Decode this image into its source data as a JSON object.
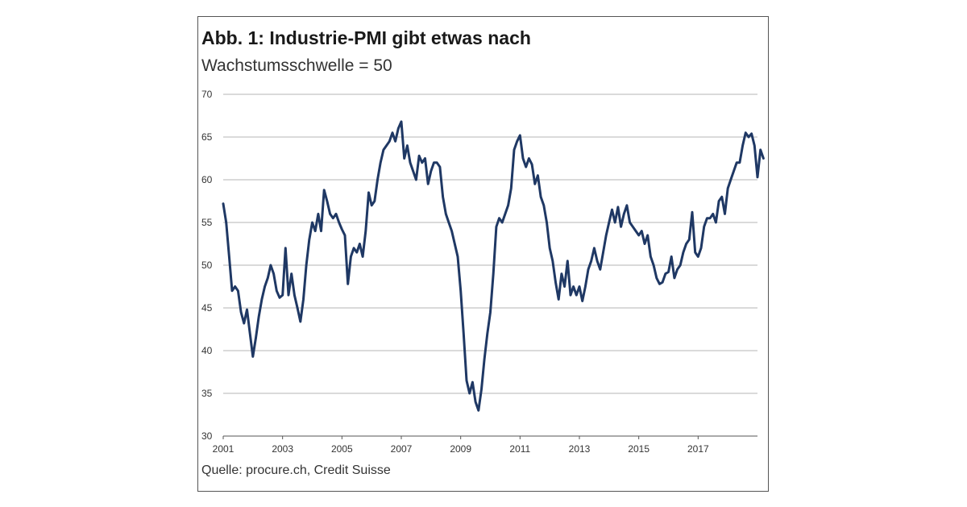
{
  "figure": {
    "title": "Abb. 1: Industrie-PMI gibt etwas nach",
    "subtitle": "Wachstumsschwelle = 50",
    "source": "Quelle: procure.ch, Credit Suisse"
  },
  "chart_data": {
    "type": "line",
    "title": "Abb. 1: Industrie-PMI gibt etwas nach",
    "subtitle": "Wachstumsschwelle = 50",
    "xlabel": "",
    "ylabel": "",
    "ylim": [
      30,
      70
    ],
    "xlim": [
      2001,
      2019
    ],
    "yticks": [
      30,
      35,
      40,
      45,
      50,
      55,
      60,
      65,
      70
    ],
    "xticks": [
      "2001",
      "2003",
      "2005",
      "2007",
      "2009",
      "2011",
      "2013",
      "2015",
      "2017"
    ],
    "grid": "horizontal",
    "legend": "none",
    "color": "#1f3864",
    "series": [
      {
        "points": [
          [
            2001.0,
            57.2
          ],
          [
            2001.1,
            55.0
          ],
          [
            2001.2,
            51.0
          ],
          [
            2001.3,
            47.0
          ],
          [
            2001.4,
            47.5
          ],
          [
            2001.5,
            47.0
          ],
          [
            2001.6,
            44.5
          ],
          [
            2001.7,
            43.2
          ],
          [
            2001.8,
            44.8
          ],
          [
            2001.9,
            42.0
          ],
          [
            2002.0,
            39.3
          ],
          [
            2002.1,
            41.5
          ],
          [
            2002.2,
            44.0
          ],
          [
            2002.3,
            46.0
          ],
          [
            2002.4,
            47.5
          ],
          [
            2002.5,
            48.5
          ],
          [
            2002.6,
            50.0
          ],
          [
            2002.7,
            49.0
          ],
          [
            2002.8,
            47.0
          ],
          [
            2002.9,
            46.2
          ],
          [
            2003.0,
            46.5
          ],
          [
            2003.1,
            52.0
          ],
          [
            2003.2,
            46.5
          ],
          [
            2003.3,
            49.0
          ],
          [
            2003.4,
            46.5
          ],
          [
            2003.5,
            45.0
          ],
          [
            2003.6,
            43.4
          ],
          [
            2003.7,
            46.0
          ],
          [
            2003.8,
            50.0
          ],
          [
            2003.9,
            53.0
          ],
          [
            2004.0,
            55.0
          ],
          [
            2004.1,
            54.0
          ],
          [
            2004.2,
            56.0
          ],
          [
            2004.3,
            54.0
          ],
          [
            2004.4,
            58.8
          ],
          [
            2004.5,
            57.5
          ],
          [
            2004.6,
            56.0
          ],
          [
            2004.7,
            55.5
          ],
          [
            2004.8,
            56.0
          ],
          [
            2004.9,
            55.0
          ],
          [
            2005.0,
            54.2
          ],
          [
            2005.1,
            53.5
          ],
          [
            2005.2,
            47.8
          ],
          [
            2005.3,
            51.0
          ],
          [
            2005.4,
            52.0
          ],
          [
            2005.5,
            51.5
          ],
          [
            2005.6,
            52.5
          ],
          [
            2005.7,
            51.0
          ],
          [
            2005.8,
            54.0
          ],
          [
            2005.9,
            58.5
          ],
          [
            2006.0,
            57.0
          ],
          [
            2006.1,
            57.5
          ],
          [
            2006.2,
            60.0
          ],
          [
            2006.3,
            62.0
          ],
          [
            2006.4,
            63.5
          ],
          [
            2006.5,
            64.0
          ],
          [
            2006.6,
            64.5
          ],
          [
            2006.7,
            65.5
          ],
          [
            2006.8,
            64.5
          ],
          [
            2006.9,
            66.0
          ],
          [
            2007.0,
            66.8
          ],
          [
            2007.1,
            62.5
          ],
          [
            2007.2,
            64.0
          ],
          [
            2007.3,
            62.0
          ],
          [
            2007.4,
            61.0
          ],
          [
            2007.5,
            60.0
          ],
          [
            2007.6,
            62.8
          ],
          [
            2007.7,
            62.0
          ],
          [
            2007.8,
            62.5
          ],
          [
            2007.9,
            59.5
          ],
          [
            2008.0,
            61.0
          ],
          [
            2008.1,
            62.0
          ],
          [
            2008.2,
            62.0
          ],
          [
            2008.3,
            61.5
          ],
          [
            2008.4,
            58.0
          ],
          [
            2008.5,
            56.0
          ],
          [
            2008.6,
            55.0
          ],
          [
            2008.7,
            54.0
          ],
          [
            2008.8,
            52.5
          ],
          [
            2008.9,
            51.0
          ],
          [
            2009.0,
            47.0
          ],
          [
            2009.1,
            42.0
          ],
          [
            2009.2,
            36.5
          ],
          [
            2009.3,
            35.0
          ],
          [
            2009.4,
            36.3
          ],
          [
            2009.5,
            34.0
          ],
          [
            2009.6,
            33.0
          ],
          [
            2009.7,
            35.5
          ],
          [
            2009.8,
            39.0
          ],
          [
            2009.9,
            42.0
          ],
          [
            2010.0,
            44.5
          ],
          [
            2010.1,
            49.0
          ],
          [
            2010.2,
            54.5
          ],
          [
            2010.3,
            55.5
          ],
          [
            2010.4,
            55.0
          ],
          [
            2010.5,
            56.0
          ],
          [
            2010.6,
            57.0
          ],
          [
            2010.7,
            59.0
          ],
          [
            2010.8,
            63.5
          ],
          [
            2010.9,
            64.5
          ],
          [
            2011.0,
            65.2
          ],
          [
            2011.1,
            62.5
          ],
          [
            2011.2,
            61.5
          ],
          [
            2011.3,
            62.5
          ],
          [
            2011.4,
            61.8
          ],
          [
            2011.5,
            59.5
          ],
          [
            2011.6,
            60.5
          ],
          [
            2011.7,
            58.0
          ],
          [
            2011.8,
            57.0
          ],
          [
            2011.9,
            55.0
          ],
          [
            2012.0,
            52.0
          ],
          [
            2012.1,
            50.5
          ],
          [
            2012.2,
            48.0
          ],
          [
            2012.3,
            46.0
          ],
          [
            2012.4,
            49.0
          ],
          [
            2012.5,
            47.5
          ],
          [
            2012.6,
            50.5
          ],
          [
            2012.7,
            46.5
          ],
          [
            2012.8,
            47.5
          ],
          [
            2012.9,
            46.5
          ],
          [
            2013.0,
            47.5
          ],
          [
            2013.1,
            45.8
          ],
          [
            2013.2,
            47.5
          ],
          [
            2013.3,
            49.5
          ],
          [
            2013.4,
            50.5
          ],
          [
            2013.5,
            52.0
          ],
          [
            2013.6,
            50.5
          ],
          [
            2013.7,
            49.5
          ],
          [
            2013.8,
            51.5
          ],
          [
            2013.9,
            53.5
          ],
          [
            2014.0,
            55.0
          ],
          [
            2014.1,
            56.5
          ],
          [
            2014.2,
            55.0
          ],
          [
            2014.3,
            56.8
          ],
          [
            2014.4,
            54.5
          ],
          [
            2014.5,
            56.0
          ],
          [
            2014.6,
            57.0
          ],
          [
            2014.7,
            55.0
          ],
          [
            2014.8,
            54.5
          ],
          [
            2014.9,
            54.0
          ],
          [
            2015.0,
            53.5
          ],
          [
            2015.1,
            54.0
          ],
          [
            2015.2,
            52.5
          ],
          [
            2015.3,
            53.5
          ],
          [
            2015.4,
            51.0
          ],
          [
            2015.5,
            50.0
          ],
          [
            2015.6,
            48.5
          ],
          [
            2015.7,
            47.8
          ],
          [
            2015.8,
            48.0
          ],
          [
            2015.9,
            49.0
          ],
          [
            2016.0,
            49.2
          ],
          [
            2016.1,
            51.0
          ],
          [
            2016.2,
            48.5
          ],
          [
            2016.3,
            49.5
          ],
          [
            2016.4,
            50.0
          ],
          [
            2016.5,
            51.5
          ],
          [
            2016.6,
            52.5
          ],
          [
            2016.7,
            53.0
          ],
          [
            2016.8,
            56.2
          ],
          [
            2016.9,
            51.5
          ],
          [
            2017.0,
            51.0
          ],
          [
            2017.1,
            52.0
          ],
          [
            2017.2,
            54.5
          ],
          [
            2017.3,
            55.5
          ],
          [
            2017.4,
            55.5
          ],
          [
            2017.5,
            56.0
          ],
          [
            2017.6,
            55.0
          ],
          [
            2017.7,
            57.5
          ],
          [
            2017.8,
            58.0
          ],
          [
            2017.9,
            56.0
          ],
          [
            2018.0,
            59.0
          ],
          [
            2018.1,
            60.0
          ],
          [
            2018.2,
            61.0
          ],
          [
            2018.3,
            62.0
          ],
          [
            2018.4,
            62.0
          ],
          [
            2018.5,
            64.0
          ],
          [
            2018.6,
            65.5
          ],
          [
            2018.7,
            65.0
          ],
          [
            2018.8,
            65.4
          ],
          [
            2018.9,
            64.0
          ],
          [
            2019.0,
            60.3
          ],
          [
            2019.1,
            63.5
          ],
          [
            2019.2,
            62.5
          ]
        ]
      }
    ]
  }
}
